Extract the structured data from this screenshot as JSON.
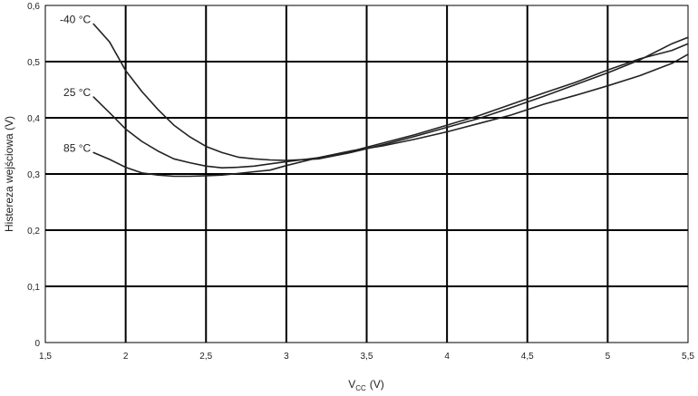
{
  "chart_data": {
    "type": "line",
    "xlabel": "V",
    "xlabel_sub": "CC",
    "xlabel_unit": "(V)",
    "ylabel": "Histereza wejściowa (V)",
    "xlim": [
      1.5,
      5.5
    ],
    "ylim": [
      0,
      0.6
    ],
    "x_ticks": [
      "1,5",
      "2",
      "2,5",
      "3",
      "3,5",
      "4",
      "4,5",
      "5",
      "5,5"
    ],
    "y_ticks": [
      "0",
      "0,1",
      "0,2",
      "0,3",
      "0,4",
      "0,5",
      "0,6"
    ],
    "grid": true,
    "series": [
      {
        "name": "-40 °C",
        "points": [
          [
            1.8,
            0.567
          ],
          [
            1.9,
            0.535
          ],
          [
            2.0,
            0.484
          ],
          [
            2.1,
            0.447
          ],
          [
            2.2,
            0.415
          ],
          [
            2.3,
            0.387
          ],
          [
            2.4,
            0.366
          ],
          [
            2.5,
            0.349
          ],
          [
            2.6,
            0.338
          ],
          [
            2.7,
            0.33
          ],
          [
            2.8,
            0.327
          ],
          [
            2.9,
            0.325
          ],
          [
            3.0,
            0.324
          ],
          [
            3.2,
            0.327
          ],
          [
            3.4,
            0.338
          ],
          [
            3.6,
            0.352
          ],
          [
            3.8,
            0.367
          ],
          [
            4.0,
            0.383
          ],
          [
            4.2,
            0.399
          ],
          [
            4.4,
            0.418
          ],
          [
            4.6,
            0.438
          ],
          [
            4.8,
            0.459
          ],
          [
            5.0,
            0.48
          ],
          [
            5.2,
            0.503
          ],
          [
            5.4,
            0.532
          ],
          [
            5.5,
            0.543
          ]
        ]
      },
      {
        "name": "25 °C",
        "points": [
          [
            1.8,
            0.437
          ],
          [
            1.9,
            0.409
          ],
          [
            2.0,
            0.38
          ],
          [
            2.1,
            0.358
          ],
          [
            2.2,
            0.341
          ],
          [
            2.3,
            0.327
          ],
          [
            2.4,
            0.32
          ],
          [
            2.5,
            0.314
          ],
          [
            2.6,
            0.311
          ],
          [
            2.7,
            0.312
          ],
          [
            2.8,
            0.314
          ],
          [
            2.9,
            0.318
          ],
          [
            3.0,
            0.322
          ],
          [
            3.2,
            0.329
          ],
          [
            3.4,
            0.34
          ],
          [
            3.6,
            0.355
          ],
          [
            3.8,
            0.37
          ],
          [
            4.0,
            0.387
          ],
          [
            4.2,
            0.404
          ],
          [
            4.4,
            0.424
          ],
          [
            4.6,
            0.444
          ],
          [
            4.8,
            0.463
          ],
          [
            5.0,
            0.485
          ],
          [
            5.2,
            0.505
          ],
          [
            5.4,
            0.52
          ],
          [
            5.5,
            0.532
          ]
        ]
      },
      {
        "name": "85 °C",
        "points": [
          [
            1.8,
            0.338
          ],
          [
            1.9,
            0.326
          ],
          [
            2.0,
            0.312
          ],
          [
            2.1,
            0.302
          ],
          [
            2.2,
            0.298
          ],
          [
            2.3,
            0.296
          ],
          [
            2.4,
            0.296
          ],
          [
            2.5,
            0.297
          ],
          [
            2.6,
            0.298
          ],
          [
            2.7,
            0.301
          ],
          [
            2.8,
            0.304
          ],
          [
            2.9,
            0.307
          ],
          [
            3.0,
            0.315
          ],
          [
            3.2,
            0.329
          ],
          [
            3.4,
            0.341
          ],
          [
            3.6,
            0.35
          ],
          [
            3.8,
            0.362
          ],
          [
            4.0,
            0.375
          ],
          [
            4.2,
            0.39
          ],
          [
            4.4,
            0.405
          ],
          [
            4.6,
            0.424
          ],
          [
            4.8,
            0.44
          ],
          [
            5.0,
            0.457
          ],
          [
            5.2,
            0.475
          ],
          [
            5.4,
            0.497
          ],
          [
            5.5,
            0.513
          ]
        ]
      }
    ],
    "series_labels_at": [
      [
        1.8,
        0.567
      ],
      [
        1.8,
        0.437
      ],
      [
        1.8,
        0.338
      ]
    ]
  }
}
